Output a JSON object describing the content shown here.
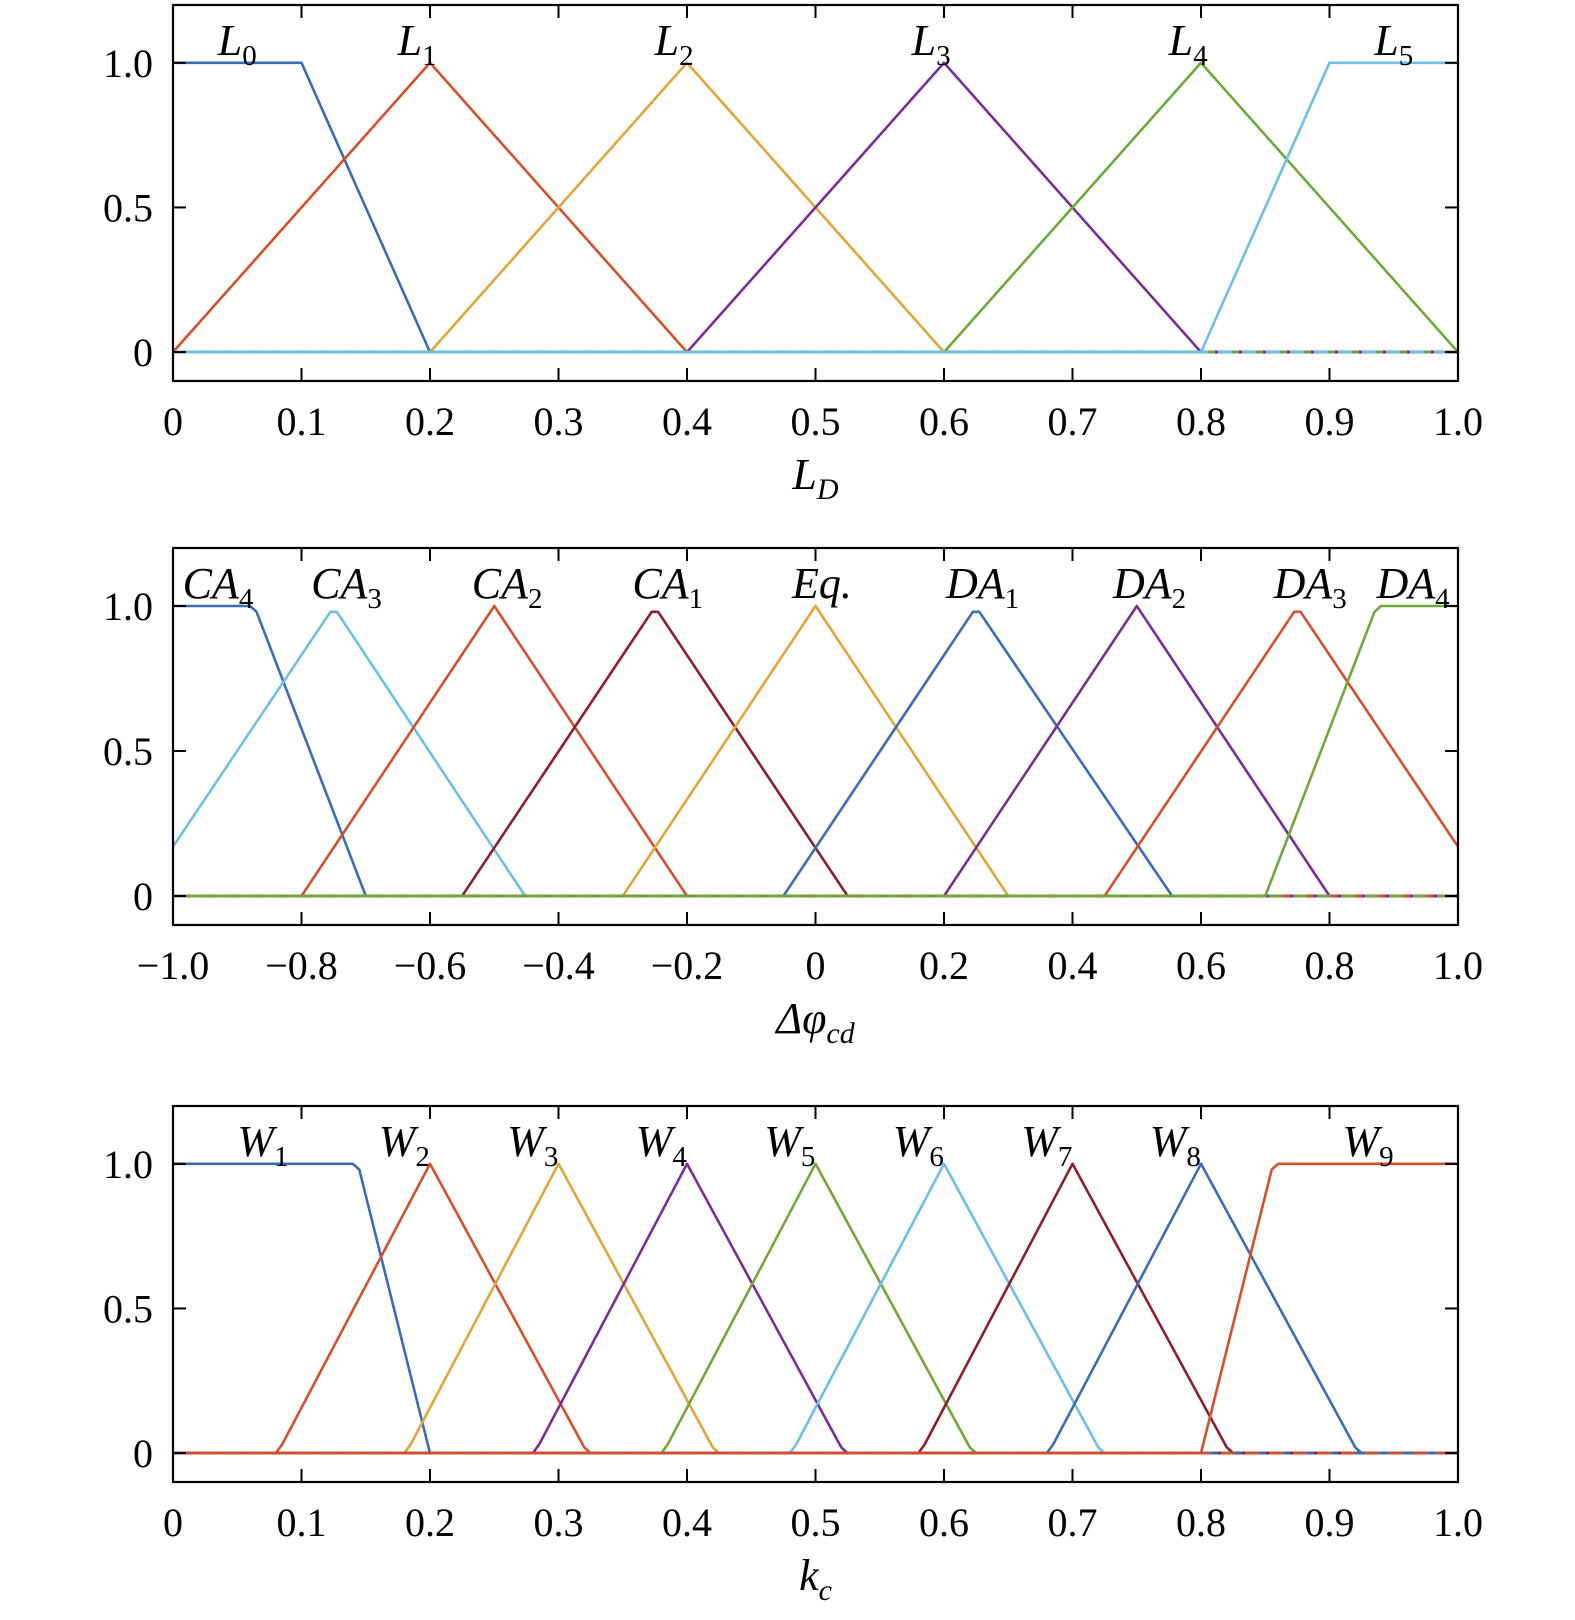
{
  "chart_data": [
    {
      "type": "line",
      "xlabel": {
        "main": "L",
        "sub": "D"
      },
      "xlim": [
        0,
        1.0
      ],
      "ylim": [
        -0.1,
        1.2
      ],
      "xticks": [
        0,
        0.1,
        0.2,
        0.3,
        0.4,
        0.5,
        0.6,
        0.7,
        0.8,
        0.9,
        1.0
      ],
      "xtick_labels": [
        "0",
        "0.1",
        "0.2",
        "0.3",
        "0.4",
        "0.5",
        "0.6",
        "0.7",
        "0.8",
        "0.9",
        "1.0"
      ],
      "yticks": [
        0,
        0.5,
        1.0
      ],
      "ytick_labels": [
        "0",
        "0.5",
        "1.0"
      ],
      "grid": false,
      "series": [
        {
          "name": "L",
          "sub": "0",
          "color": "#3a6db5",
          "x": [
            0,
            0.1,
            0.2,
            1.0
          ],
          "y": [
            1,
            1,
            0,
            0
          ],
          "label_x": 0.05
        },
        {
          "name": "L",
          "sub": "1",
          "color": "#d4502c",
          "x": [
            0,
            0.2,
            0.4,
            1.0
          ],
          "y": [
            0,
            1,
            0,
            0
          ],
          "label_x": 0.19
        },
        {
          "name": "L",
          "sub": "2",
          "color": "#e0a63a",
          "x": [
            0,
            0.2,
            0.4,
            0.6,
            1.0
          ],
          "y": [
            0,
            0,
            1,
            0,
            0
          ],
          "label_x": 0.39
        },
        {
          "name": "L",
          "sub": "3",
          "color": "#7b2d96",
          "x": [
            0,
            0.4,
            0.6,
            0.8,
            1.0
          ],
          "y": [
            0,
            0,
            1,
            0,
            0
          ],
          "label_x": 0.59
        },
        {
          "name": "L",
          "sub": "4",
          "color": "#6fa93a",
          "x": [
            0,
            0.6,
            0.8,
            1.0
          ],
          "y": [
            0,
            0,
            1,
            0
          ],
          "label_x": 0.79
        },
        {
          "name": "L",
          "sub": "5",
          "color": "#6fbfe3",
          "x": [
            0,
            0.8,
            0.9,
            1.0
          ],
          "y": [
            0,
            0,
            1,
            1
          ],
          "label_x": 0.95
        }
      ]
    },
    {
      "type": "line",
      "xlabel": {
        "main": "Δφ",
        "sub": "cd"
      },
      "xlim": [
        -1.0,
        1.0
      ],
      "ylim": [
        -0.1,
        1.2
      ],
      "xticks": [
        -1.0,
        -0.8,
        -0.6,
        -0.4,
        -0.2,
        0,
        0.2,
        0.4,
        0.6,
        0.8,
        1.0
      ],
      "xtick_labels": [
        "−1.0",
        "−0.8",
        "−0.6",
        "−0.4",
        "−0.2",
        "0",
        "0.2",
        "0.4",
        "0.6",
        "0.8",
        "1.0"
      ],
      "yticks": [
        0,
        0.5,
        1.0
      ],
      "ytick_labels": [
        "0",
        "0.5",
        "1.0"
      ],
      "grid": false,
      "series": [
        {
          "name": "CA",
          "sub": "4",
          "color": "#3a6db5",
          "x": [
            -1.0,
            -0.88,
            -0.87,
            -0.7,
            1.0
          ],
          "y": [
            1,
            1,
            0.98,
            0,
            0
          ],
          "label_x": -0.93
        },
        {
          "name": "CA",
          "sub": "3",
          "color": "#6fbfe3",
          "x": [
            -1.0,
            -0.755,
            -0.745,
            -0.455,
            -0.45,
            1.0
          ],
          "y": [
            0.17,
            0.98,
            0.98,
            0.01,
            0,
            0
          ],
          "label_x": -0.73
        },
        {
          "name": "CA",
          "sub": "2",
          "color": "#d4502c",
          "x": [
            -1.0,
            -0.8,
            -0.5,
            -0.2,
            1.0
          ],
          "y": [
            0,
            0,
            1,
            0,
            0
          ],
          "label_x": -0.48
        },
        {
          "name": "CA",
          "sub": "1",
          "color": "#8b1f2f",
          "x": [
            -1.0,
            -0.55,
            -0.255,
            -0.245,
            0.05,
            1.0
          ],
          "y": [
            0,
            0,
            0.98,
            0.98,
            0,
            0
          ],
          "label_x": -0.23
        },
        {
          "name": "Eq.",
          "sub": "",
          "color": "#e0a63a",
          "x": [
            -1.0,
            -0.3,
            0,
            0.3,
            1.0
          ],
          "y": [
            0,
            0,
            1,
            0,
            0
          ],
          "label_x": 0.01
        },
        {
          "name": "DA",
          "sub": "1",
          "color": "#3a6db5",
          "x": [
            -1.0,
            -0.05,
            0.245,
            0.255,
            0.555,
            1.0
          ],
          "y": [
            0,
            0,
            0.98,
            0.98,
            0,
            0
          ],
          "label_x": 0.26
        },
        {
          "name": "DA",
          "sub": "2",
          "color": "#7b2d96",
          "x": [
            -1.0,
            0.2,
            0.5,
            0.8,
            1.0
          ],
          "y": [
            0,
            0,
            1,
            0,
            0
          ],
          "label_x": 0.52
        },
        {
          "name": "DA",
          "sub": "3",
          "color": "#d4502c",
          "x": [
            -1.0,
            0.45,
            0.745,
            0.755,
            1.0
          ],
          "y": [
            0,
            0,
            0.98,
            0.98,
            0.17
          ],
          "label_x": 0.77
        },
        {
          "name": "DA",
          "sub": "4",
          "color": "#6fa93a",
          "x": [
            -1.0,
            0.7,
            0.87,
            0.88,
            1.0
          ],
          "y": [
            0,
            0,
            0.98,
            1,
            1
          ],
          "label_x": 0.93
        }
      ]
    },
    {
      "type": "line",
      "xlabel": {
        "main": "k",
        "sub": "c"
      },
      "xlim": [
        0,
        1.0
      ],
      "ylim": [
        -0.1,
        1.2
      ],
      "xticks": [
        0,
        0.1,
        0.2,
        0.3,
        0.4,
        0.5,
        0.6,
        0.7,
        0.8,
        0.9,
        1.0
      ],
      "xtick_labels": [
        "0",
        "0.1",
        "0.2",
        "0.3",
        "0.4",
        "0.5",
        "0.6",
        "0.7",
        "0.8",
        "0.9",
        "1.0"
      ],
      "yticks": [
        0,
        0.5,
        1.0
      ],
      "ytick_labels": [
        "0",
        "0.5",
        "1.0"
      ],
      "grid": false,
      "series": [
        {
          "name": "W",
          "sub": "1",
          "color": "#3a6db5",
          "x": [
            0,
            0.14,
            0.145,
            0.2,
            1.0
          ],
          "y": [
            1,
            1,
            0.98,
            0,
            0
          ],
          "label_x": 0.07
        },
        {
          "name": "W",
          "sub": "2",
          "color": "#d4502c",
          "x": [
            0,
            0.08,
            0.085,
            0.2,
            0.32,
            0.325,
            1.0
          ],
          "y": [
            0,
            0,
            0.03,
            1,
            0.02,
            0,
            0
          ],
          "label_x": 0.18
        },
        {
          "name": "W",
          "sub": "3",
          "color": "#e0a63a",
          "x": [
            0,
            0.18,
            0.185,
            0.3,
            0.42,
            0.425,
            1.0
          ],
          "y": [
            0,
            0,
            0.03,
            1,
            0.02,
            0,
            0
          ],
          "label_x": 0.28
        },
        {
          "name": "W",
          "sub": "4",
          "color": "#7b2d96",
          "x": [
            0,
            0.28,
            0.285,
            0.4,
            0.52,
            0.525,
            1.0
          ],
          "y": [
            0,
            0,
            0.03,
            1,
            0.02,
            0,
            0
          ],
          "label_x": 0.38
        },
        {
          "name": "W",
          "sub": "5",
          "color": "#6fa93a",
          "x": [
            0,
            0.38,
            0.385,
            0.5,
            0.62,
            0.625,
            1.0
          ],
          "y": [
            0,
            0,
            0.03,
            1,
            0.02,
            0,
            0
          ],
          "label_x": 0.48
        },
        {
          "name": "W",
          "sub": "6",
          "color": "#6fbfe3",
          "x": [
            0,
            0.48,
            0.485,
            0.6,
            0.72,
            0.725,
            1.0
          ],
          "y": [
            0,
            0,
            0.03,
            1,
            0.02,
            0,
            0
          ],
          "label_x": 0.58
        },
        {
          "name": "W",
          "sub": "7",
          "color": "#8b1f2f",
          "x": [
            0,
            0.58,
            0.585,
            0.7,
            0.82,
            0.825,
            1.0
          ],
          "y": [
            0,
            0,
            0.03,
            1,
            0.02,
            0,
            0
          ],
          "label_x": 0.68
        },
        {
          "name": "W",
          "sub": "8",
          "color": "#3a6db5",
          "x": [
            0,
            0.68,
            0.685,
            0.8,
            0.92,
            0.925,
            1.0
          ],
          "y": [
            0,
            0,
            0.03,
            1,
            0.02,
            0,
            0
          ],
          "label_x": 0.78
        },
        {
          "name": "W",
          "sub": "9",
          "color": "#d4502c",
          "x": [
            0,
            0.8,
            0.855,
            0.86,
            1.0
          ],
          "y": [
            0,
            0,
            0.98,
            1,
            1
          ],
          "label_x": 0.93
        }
      ]
    }
  ]
}
